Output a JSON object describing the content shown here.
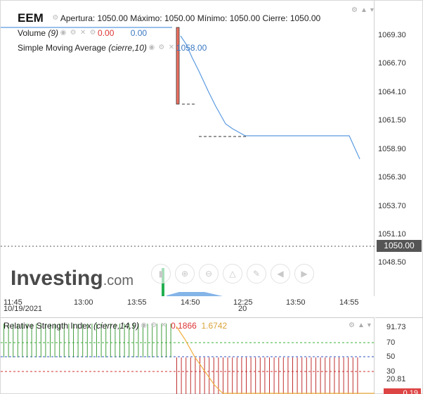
{
  "header": {
    "symbol": "EEM",
    "apertura_label": "Apertura:",
    "apertura": "1050.00",
    "maximo_label": "Máximo:",
    "maximo": "1050.00",
    "minimo_label": "Mínimo:",
    "minimo": "1050.00",
    "cierre_label": "Cierre:",
    "cierre": "1050.00"
  },
  "volume_legend": {
    "name": "Volume",
    "param": "(9)",
    "value_red": "0.00",
    "value_blue": "0.00"
  },
  "sma_legend": {
    "name": "Simple Moving Average",
    "param": "(cierre,10)",
    "value": "1058.00"
  },
  "price_axis": {
    "ticks": [
      "1069.30",
      "1066.70",
      "1064.10",
      "1061.50",
      "1058.90",
      "1056.30",
      "1053.70",
      "1051.10",
      "1048.50"
    ],
    "last_price": "1050.00"
  },
  "time_axis": {
    "ticks": [
      {
        "label": "11:45",
        "sub": "10/19/2021"
      },
      {
        "label": "13:00",
        "sub": ""
      },
      {
        "label": "13:55",
        "sub": ""
      },
      {
        "label": "14:50",
        "sub": ""
      },
      {
        "label": "12:25",
        "sub": "20"
      },
      {
        "label": "13:50",
        "sub": ""
      },
      {
        "label": "14:55",
        "sub": ""
      }
    ]
  },
  "rsi_legend": {
    "name": "Relative Strength Index",
    "param": "(cierre,14,9)",
    "value_red": "0.1866",
    "value_gold": "1.6742"
  },
  "rsi_axis": {
    "ticks": [
      "91.73",
      "70",
      "50",
      "30",
      "20.81"
    ],
    "last": "0.19"
  },
  "watermark": {
    "brand": "Investing",
    "suffix": ".com"
  },
  "colors": {
    "sma_line": "#5b9be0",
    "candle_red": "#f07060",
    "volume_green": "#22b050",
    "rsi_green_bar": "#44a040",
    "rsi_red_bar": "#c03030",
    "rsi_line": "#f0b040",
    "level_70": "#38b038",
    "level_50": "#3050c0",
    "level_30": "#d03030"
  },
  "toolbar_icons": [
    "candle-icon",
    "zoom-in-icon",
    "zoom-out-icon",
    "add-indicator-icon",
    "draw-icon",
    "back-icon",
    "forward-icon"
  ]
}
